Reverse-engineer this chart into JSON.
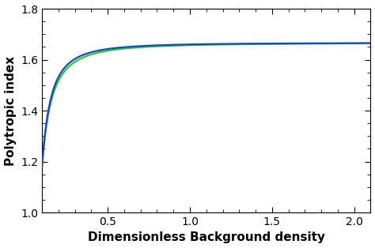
{
  "title": "",
  "xlabel": "Dimensionless Background density",
  "ylabel": "Polytropic index",
  "xlim": [
    0.1,
    2.1
  ],
  "ylim": [
    1.0,
    1.8
  ],
  "xticks": [
    0.5,
    1.0,
    1.5,
    2.0
  ],
  "yticks": [
    1.0,
    1.2,
    1.4,
    1.6,
    1.8
  ],
  "curve1_color": "#1844cc",
  "curve2_color": "#22cc22",
  "asymptote": 1.6667,
  "x_start": 0.1,
  "x_end": 2.1,
  "n_points": 1000,
  "y_at_xstart": 1.18,
  "alpha1": 1.85,
  "alpha2": 1.7,
  "background_color": "#ffffff",
  "tick_label_fontsize": 10,
  "axis_label_fontsize": 11,
  "linewidth": 1.6
}
